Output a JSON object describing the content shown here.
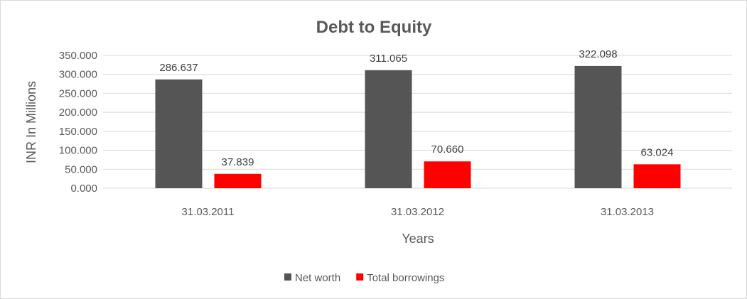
{
  "chart_data": {
    "type": "bar",
    "title": "Debt to Equity",
    "xlabel": "Years",
    "ylabel": "INR In Millions",
    "categories": [
      "31.03.2011",
      "31.03.2012",
      "31.03.2013"
    ],
    "series": [
      {
        "name": "Net worth",
        "color": "#555555",
        "values": [
          286.637,
          311.065,
          322.098
        ],
        "labels": [
          "286.637",
          "311.065",
          "322.098"
        ]
      },
      {
        "name": "Total borrowings",
        "color": "#ff0000",
        "values": [
          37.839,
          70.66,
          63.024
        ],
        "labels": [
          "37.839",
          "70.660",
          "63.024"
        ]
      }
    ],
    "ylim": [
      0,
      350
    ],
    "yticks": [
      "0.000",
      "50.000",
      "100.000",
      "150.000",
      "200.000",
      "250.000",
      "300.000",
      "350.000"
    ],
    "grid": true,
    "legend": "bottom"
  }
}
